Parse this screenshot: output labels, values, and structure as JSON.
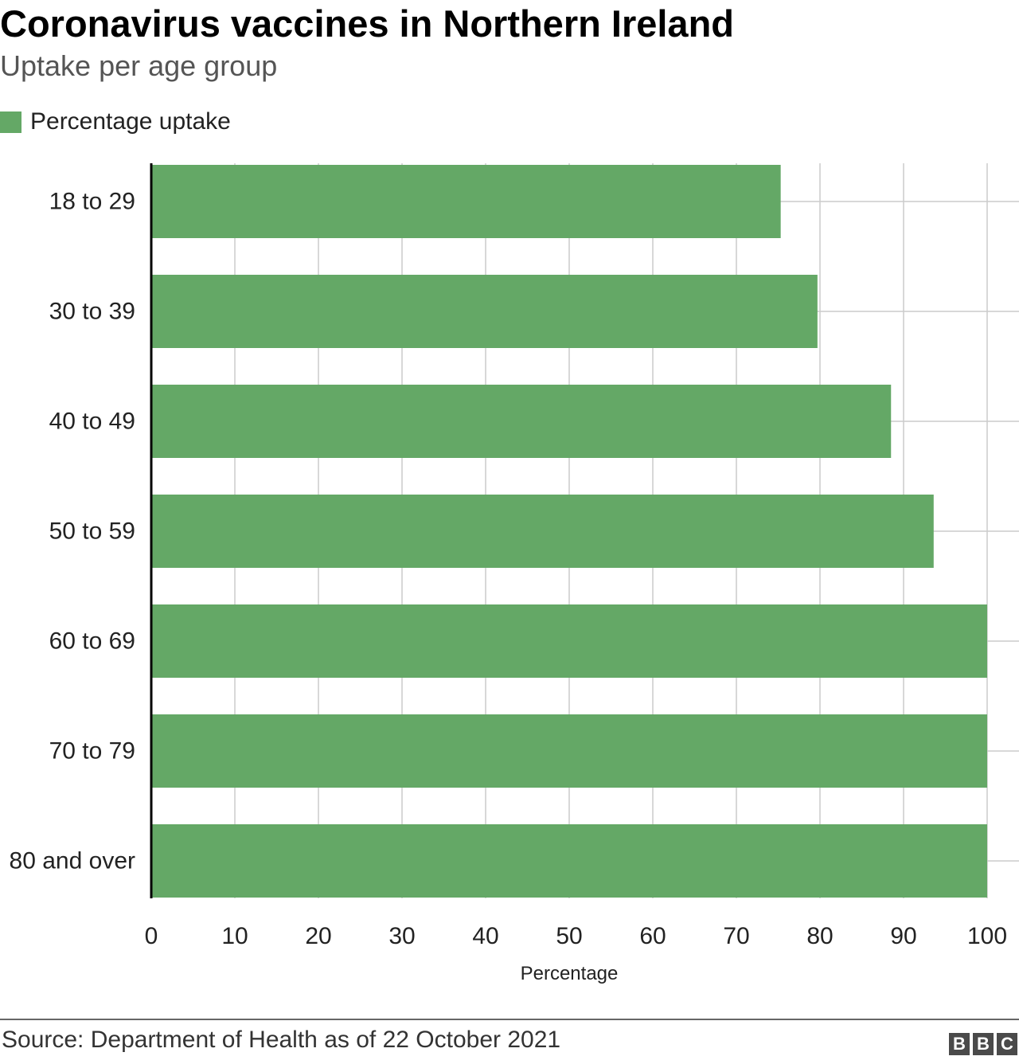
{
  "title": "Coronavirus vaccines in Northern Ireland",
  "subtitle": "Uptake per age group",
  "legend": {
    "label": "Percentage uptake",
    "color": "#64a866"
  },
  "source": "Source: Department of Health as of 22 October 2021",
  "logo": {
    "letters": [
      "B",
      "B",
      "C"
    ]
  },
  "chart_data": {
    "type": "bar",
    "orientation": "horizontal",
    "categories": [
      "18 to 29",
      "30 to 39",
      "40 to 49",
      "50 to 59",
      "60 to 69",
      "70 to 79",
      "80 and over"
    ],
    "series": [
      {
        "name": "Percentage uptake",
        "values": [
          75.3,
          79.7,
          88.5,
          93.6,
          100,
          100,
          100
        ],
        "color": "#64a866"
      }
    ],
    "xlabel": "Percentage",
    "ylabel": "",
    "xlim": [
      0,
      100
    ],
    "xticks": [
      0,
      10,
      20,
      30,
      40,
      50,
      60,
      70,
      80,
      90,
      100
    ],
    "grid": true,
    "legend_position": "top-left",
    "colors": {
      "bar": "#64a866",
      "grid": "#cccccc",
      "axis": "#000000"
    }
  }
}
